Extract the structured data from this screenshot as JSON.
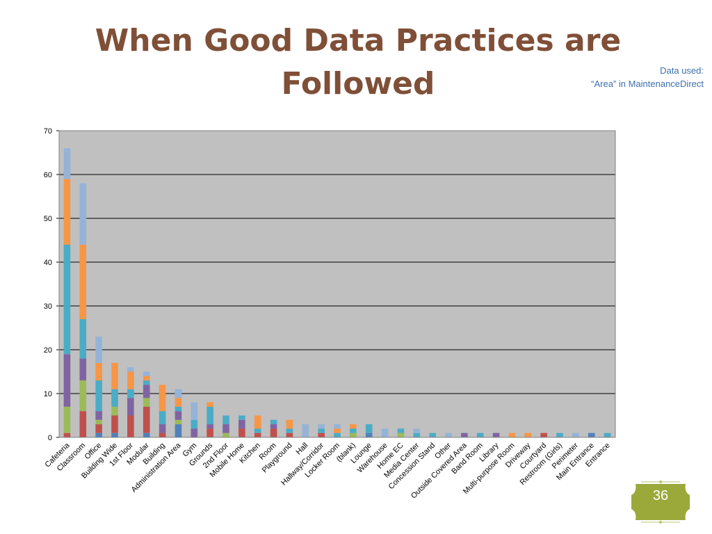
{
  "slide": {
    "title": "When Good Data Practices are Followed",
    "note_line1": "Data used:",
    "note_line2": "“Area” in MaintenanceDirect",
    "page_number": "36"
  },
  "colors": {
    "plot_background": "#c0c0c0",
    "title": "#7f4f37",
    "note": "#3b6fb0",
    "badge": "#9aa93a",
    "seg1": "#4f81bd",
    "seg2": "#c0504d",
    "seg3": "#9bbb59",
    "seg4": "#8064a2",
    "seg5": "#4bacc6",
    "seg6": "#f79646",
    "seg7": "#95b3d7"
  },
  "chart_data": {
    "type": "bar",
    "stacked": true,
    "ylim": [
      0,
      70
    ],
    "yticks": [
      0,
      10,
      20,
      30,
      40,
      50,
      60,
      70
    ],
    "grid": true,
    "categories": [
      "Cafeteria",
      "Classroom",
      "Office",
      "Building Wide",
      "1st Floor",
      "Modular",
      "Building",
      "Administration Area",
      "Gym",
      "Grounds",
      "2nd Floor",
      "Mobile Home",
      "Kitchen",
      "Room",
      "Playground",
      "Hall",
      "Hallway/Corridor",
      "Locker Room",
      "(blank)",
      "Lounge",
      "Warehouse",
      "Home EC",
      "Media Center",
      "Concession Stand",
      "Other",
      "Outside Covered Area",
      "Band Room",
      "Library",
      "Multi-purpose Room",
      "Driveway",
      "Courtyard",
      "Restroom (Girls)",
      "Perimeter",
      "Main Entrance",
      "Entrance"
    ],
    "series": [
      {
        "values": [
          0,
          0,
          1,
          1,
          0,
          1,
          0,
          3,
          0,
          0,
          0,
          0,
          0,
          0,
          0,
          0,
          0,
          0,
          0,
          1,
          0,
          0,
          0,
          0,
          0,
          0,
          0,
          0,
          0,
          0,
          0,
          0,
          0,
          1,
          0
        ]
      },
      {
        "values": [
          1,
          6,
          2,
          4,
          5,
          6,
          1,
          0,
          0,
          2,
          0,
          2,
          1,
          2,
          1,
          0,
          1,
          0,
          0,
          0,
          0,
          0,
          0,
          0,
          0,
          0,
          0,
          0,
          0,
          0,
          1,
          0,
          0,
          0,
          0
        ]
      },
      {
        "values": [
          6,
          7,
          1,
          2,
          0,
          2,
          0,
          1,
          0,
          0,
          1,
          0,
          0,
          0,
          0,
          0,
          0,
          0,
          1,
          0,
          0,
          1,
          0,
          0,
          0,
          0,
          0,
          0,
          0,
          0,
          0,
          0,
          0,
          0,
          0
        ]
      },
      {
        "values": [
          12,
          5,
          2,
          0,
          4,
          3,
          2,
          2,
          2,
          1,
          2,
          2,
          0,
          1,
          0,
          0,
          0,
          0,
          0,
          0,
          0,
          0,
          0,
          0,
          0,
          1,
          0,
          1,
          0,
          0,
          0,
          0,
          0,
          0,
          0
        ]
      },
      {
        "values": [
          25,
          9,
          7,
          4,
          2,
          1,
          3,
          1,
          2,
          4,
          2,
          1,
          1,
          1,
          1,
          0,
          1,
          1,
          1,
          2,
          0,
          1,
          1,
          1,
          0,
          0,
          1,
          0,
          0,
          0,
          0,
          1,
          0,
          0,
          1
        ]
      },
      {
        "values": [
          15,
          17,
          4,
          6,
          4,
          1,
          6,
          2,
          0,
          1,
          0,
          0,
          3,
          0,
          2,
          0,
          0,
          1,
          1,
          0,
          0,
          0,
          0,
          0,
          0,
          0,
          0,
          0,
          1,
          1,
          0,
          0,
          0,
          0,
          0
        ]
      },
      {
        "values": [
          7,
          14,
          6,
          0,
          1,
          1,
          0,
          2,
          4,
          0,
          0,
          0,
          0,
          0,
          0,
          3,
          1,
          1,
          0,
          0,
          2,
          0,
          1,
          0,
          1,
          0,
          0,
          0,
          0,
          0,
          0,
          0,
          1,
          0,
          0
        ]
      }
    ]
  }
}
